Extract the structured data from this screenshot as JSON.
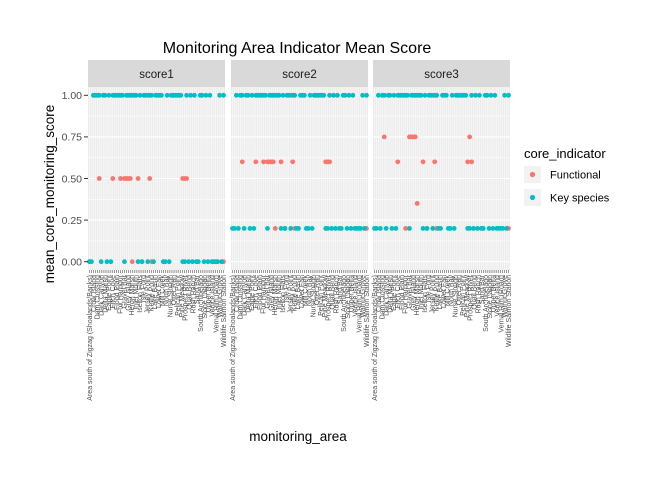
{
  "chart_data": {
    "type": "scatter",
    "title": "Monitoring Area Indicator Mean Score",
    "xlabel": "monitoring_area",
    "ylabel": "mean_core_monitoring_score",
    "ylim": [
      -0.05,
      1.05
    ],
    "yticks": [
      0.0,
      0.25,
      0.5,
      0.75,
      1.0
    ],
    "ytick_labels": [
      "0.00",
      "0.25",
      "0.50",
      "0.75",
      "1.00"
    ],
    "facets": [
      "score1",
      "score2",
      "score3"
    ],
    "legend": {
      "title": "core_indicator",
      "position": "right",
      "entries": [
        {
          "name": "Functional",
          "color": "#F8766D"
        },
        {
          "name": "Key species",
          "color": "#00BFC4"
        }
      ]
    },
    "grid": true,
    "x_categories": [
      "Area south of Zigzag (Shoalands/Banks)",
      "Crow Island",
      "Dam Crossing",
      "Dark Canyon",
      "Delta Marsh",
      "Eagle Point",
      "Fitch Cove",
      "Flood Plain",
      "Fox Harbour",
      "Gravel Bar",
      "Grey Island",
      "Heron Marsh",
      "Inlet Mouth",
      "Iselton Flats",
      "Isle Ford",
      "Jersey Point",
      "Kettle Pond",
      "Lake Basin",
      "Lower Fan",
      "Mill Creek",
      "North Bay",
      "Nurse Slough",
      "Otter Run",
      "Pelican Point",
      "Pine Meadow",
      "Prospect River",
      "Quail Bend",
      "Rush Ranch",
      "Sand Bar",
      "South Archipelago",
      "Stone Lagoon",
      "Upper Delta",
      "Venice Island",
      "Vernal Rim (Road)",
      "Walnut Grove",
      "Wildlife Salmon Station"
    ],
    "series": [
      {
        "facet": "score1",
        "name": "Key species",
        "points": [
          [
            1,
            0.0
          ],
          [
            2,
            0.0
          ],
          [
            3,
            1.0
          ],
          [
            4,
            1.0
          ],
          [
            5,
            1.0
          ],
          [
            6,
            1.0
          ],
          [
            7,
            0.0
          ],
          [
            8,
            1.0
          ],
          [
            9,
            1.0
          ],
          [
            10,
            0.0
          ],
          [
            11,
            1.0
          ],
          [
            12,
            0.0
          ],
          [
            13,
            1.0
          ],
          [
            14,
            1.0
          ],
          [
            15,
            1.0
          ],
          [
            16,
            1.0
          ],
          [
            17,
            1.0
          ],
          [
            18,
            1.0
          ],
          [
            19,
            0.0
          ],
          [
            20,
            1.0
          ],
          [
            21,
            1.0
          ],
          [
            22,
            1.0
          ],
          [
            23,
            1.0
          ],
          [
            24,
            1.0
          ],
          [
            25,
            1.0
          ],
          [
            26,
            0.0
          ],
          [
            27,
            1.0
          ],
          [
            28,
            0.0
          ],
          [
            29,
            1.0
          ],
          [
            30,
            1.0
          ],
          [
            31,
            0.0
          ],
          [
            32,
            1.0
          ],
          [
            33,
            1.0
          ],
          [
            34,
            0.0
          ],
          [
            35,
            1.0
          ],
          [
            36,
            1.0
          ],
          [
            37,
            1.0
          ],
          [
            38,
            1.0
          ],
          [
            39,
            0.0
          ],
          [
            40,
            0.0
          ],
          [
            41,
            1.0
          ],
          [
            42,
            0.0
          ],
          [
            43,
            1.0
          ],
          [
            44,
            1.0
          ],
          [
            45,
            1.0
          ],
          [
            46,
            1.0
          ],
          [
            47,
            1.0
          ],
          [
            48,
            1.0
          ],
          [
            49,
            0.0
          ],
          [
            50,
            0.0
          ],
          [
            51,
            1.0
          ],
          [
            52,
            0.0
          ],
          [
            53,
            1.0
          ],
          [
            54,
            0.0
          ],
          [
            55,
            1.0
          ],
          [
            56,
            0.0
          ],
          [
            57,
            0.0
          ],
          [
            58,
            1.0
          ],
          [
            59,
            1.0
          ],
          [
            60,
            0.0
          ],
          [
            61,
            1.0
          ],
          [
            62,
            0.0
          ],
          [
            63,
            1.0
          ],
          [
            64,
            0.0
          ],
          [
            65,
            0.0
          ],
          [
            66,
            0.0
          ],
          [
            67,
            0.0
          ],
          [
            68,
            1.0
          ],
          [
            69,
            0.0
          ],
          [
            70,
            1.0
          ]
        ]
      },
      {
        "facet": "score1",
        "name": "Functional",
        "points": [
          [
            1,
            0.0
          ],
          [
            6,
            0.5
          ],
          [
            13,
            0.5
          ],
          [
            17,
            0.5
          ],
          [
            19,
            0.5
          ],
          [
            20,
            0.5
          ],
          [
            21,
            0.5
          ],
          [
            22,
            0.5
          ],
          [
            23,
            0.0
          ],
          [
            26,
            0.5
          ],
          [
            28,
            0.0
          ],
          [
            31,
            1.0
          ],
          [
            32,
            0.5
          ],
          [
            33,
            0.0
          ],
          [
            44,
            1.0
          ],
          [
            49,
            0.5
          ],
          [
            50,
            0.5
          ],
          [
            51,
            0.5
          ],
          [
            70,
            0.0
          ]
        ]
      },
      {
        "facet": "score2",
        "name": "Key species",
        "points": [
          [
            1,
            0.2
          ],
          [
            2,
            0.2
          ],
          [
            3,
            1.0
          ],
          [
            4,
            0.2
          ],
          [
            5,
            1.0
          ],
          [
            6,
            1.0
          ],
          [
            7,
            0.2
          ],
          [
            8,
            1.0
          ],
          [
            9,
            1.0
          ],
          [
            10,
            0.2
          ],
          [
            11,
            1.0
          ],
          [
            12,
            0.2
          ],
          [
            13,
            1.0
          ],
          [
            14,
            1.0
          ],
          [
            15,
            1.0
          ],
          [
            16,
            1.0
          ],
          [
            17,
            1.0
          ],
          [
            18,
            1.0
          ],
          [
            19,
            0.2
          ],
          [
            20,
            1.0
          ],
          [
            21,
            1.0
          ],
          [
            22,
            1.0
          ],
          [
            23,
            1.0
          ],
          [
            24,
            1.0
          ],
          [
            25,
            1.0
          ],
          [
            26,
            0.2
          ],
          [
            27,
            1.0
          ],
          [
            28,
            0.2
          ],
          [
            29,
            1.0
          ],
          [
            30,
            1.0
          ],
          [
            31,
            0.2
          ],
          [
            32,
            1.0
          ],
          [
            33,
            1.0
          ],
          [
            34,
            0.2
          ],
          [
            35,
            0.2
          ],
          [
            36,
            1.0
          ],
          [
            37,
            1.0
          ],
          [
            38,
            1.0
          ],
          [
            39,
            0.2
          ],
          [
            40,
            0.2
          ],
          [
            41,
            1.0
          ],
          [
            42,
            0.2
          ],
          [
            43,
            1.0
          ],
          [
            44,
            1.0
          ],
          [
            45,
            1.0
          ],
          [
            46,
            1.0
          ],
          [
            47,
            1.0
          ],
          [
            48,
            1.0
          ],
          [
            49,
            0.2
          ],
          [
            50,
            0.2
          ],
          [
            51,
            1.0
          ],
          [
            52,
            0.2
          ],
          [
            53,
            1.0
          ],
          [
            54,
            0.2
          ],
          [
            55,
            1.0
          ],
          [
            56,
            0.2
          ],
          [
            57,
            0.2
          ],
          [
            58,
            1.0
          ],
          [
            59,
            1.0
          ],
          [
            60,
            0.2
          ],
          [
            61,
            1.0
          ],
          [
            62,
            0.2
          ],
          [
            63,
            1.0
          ],
          [
            64,
            0.2
          ],
          [
            65,
            0.2
          ],
          [
            66,
            0.2
          ],
          [
            67,
            0.2
          ],
          [
            68,
            1.0
          ],
          [
            69,
            0.2
          ],
          [
            70,
            1.0
          ]
        ]
      },
      {
        "facet": "score2",
        "name": "Functional",
        "points": [
          [
            6,
            0.6
          ],
          [
            13,
            0.6
          ],
          [
            17,
            0.6
          ],
          [
            19,
            0.6
          ],
          [
            20,
            0.6
          ],
          [
            21,
            0.6
          ],
          [
            22,
            0.6
          ],
          [
            23,
            0.2
          ],
          [
            26,
            0.6
          ],
          [
            28,
            0.2
          ],
          [
            31,
            1.0
          ],
          [
            32,
            0.6
          ],
          [
            33,
            0.2
          ],
          [
            44,
            1.0
          ],
          [
            49,
            0.6
          ],
          [
            50,
            0.6
          ],
          [
            51,
            0.6
          ],
          [
            70,
            0.2
          ]
        ]
      },
      {
        "facet": "score3",
        "name": "Key species",
        "points": [
          [
            1,
            0.2
          ],
          [
            2,
            0.2
          ],
          [
            3,
            1.0
          ],
          [
            4,
            0.2
          ],
          [
            5,
            1.0
          ],
          [
            6,
            1.0
          ],
          [
            7,
            0.2
          ],
          [
            8,
            1.0
          ],
          [
            9,
            1.0
          ],
          [
            10,
            0.2
          ],
          [
            11,
            1.0
          ],
          [
            12,
            0.2
          ],
          [
            13,
            1.0
          ],
          [
            14,
            1.0
          ],
          [
            15,
            1.0
          ],
          [
            16,
            1.0
          ],
          [
            17,
            1.0
          ],
          [
            18,
            1.0
          ],
          [
            19,
            0.2
          ],
          [
            20,
            1.0
          ],
          [
            21,
            1.0
          ],
          [
            22,
            1.0
          ],
          [
            23,
            1.0
          ],
          [
            24,
            1.0
          ],
          [
            25,
            1.0
          ],
          [
            26,
            0.2
          ],
          [
            27,
            1.0
          ],
          [
            28,
            0.2
          ],
          [
            29,
            1.0
          ],
          [
            30,
            1.0
          ],
          [
            31,
            0.2
          ],
          [
            32,
            1.0
          ],
          [
            33,
            1.0
          ],
          [
            34,
            0.2
          ],
          [
            35,
            0.2
          ],
          [
            36,
            1.0
          ],
          [
            37,
            1.0
          ],
          [
            38,
            1.0
          ],
          [
            39,
            0.2
          ],
          [
            40,
            0.2
          ],
          [
            41,
            1.0
          ],
          [
            42,
            0.2
          ],
          [
            43,
            1.0
          ],
          [
            44,
            1.0
          ],
          [
            45,
            1.0
          ],
          [
            46,
            1.0
          ],
          [
            47,
            1.0
          ],
          [
            48,
            1.0
          ],
          [
            49,
            0.2
          ],
          [
            50,
            0.2
          ],
          [
            51,
            1.0
          ],
          [
            52,
            0.2
          ],
          [
            53,
            1.0
          ],
          [
            54,
            0.2
          ],
          [
            55,
            1.0
          ],
          [
            56,
            0.2
          ],
          [
            57,
            0.2
          ],
          [
            58,
            1.0
          ],
          [
            59,
            1.0
          ],
          [
            60,
            0.2
          ],
          [
            61,
            1.0
          ],
          [
            62,
            0.2
          ],
          [
            63,
            1.0
          ],
          [
            64,
            0.2
          ],
          [
            65,
            0.2
          ],
          [
            66,
            0.2
          ],
          [
            67,
            0.2
          ],
          [
            68,
            1.0
          ],
          [
            69,
            0.2
          ],
          [
            70,
            1.0
          ]
        ]
      },
      {
        "facet": "score3",
        "name": "Functional",
        "points": [
          [
            6,
            0.75
          ],
          [
            13,
            0.6
          ],
          [
            17,
            0.2
          ],
          [
            19,
            0.75
          ],
          [
            20,
            0.75
          ],
          [
            21,
            0.75
          ],
          [
            22,
            0.75
          ],
          [
            23,
            0.35
          ],
          [
            26,
            0.6
          ],
          [
            28,
            0.2
          ],
          [
            31,
            1.0
          ],
          [
            32,
            0.6
          ],
          [
            33,
            0.2
          ],
          [
            44,
            1.0
          ],
          [
            49,
            0.6
          ],
          [
            50,
            0.75
          ],
          [
            51,
            0.6
          ],
          [
            70,
            0.2
          ]
        ]
      }
    ]
  }
}
